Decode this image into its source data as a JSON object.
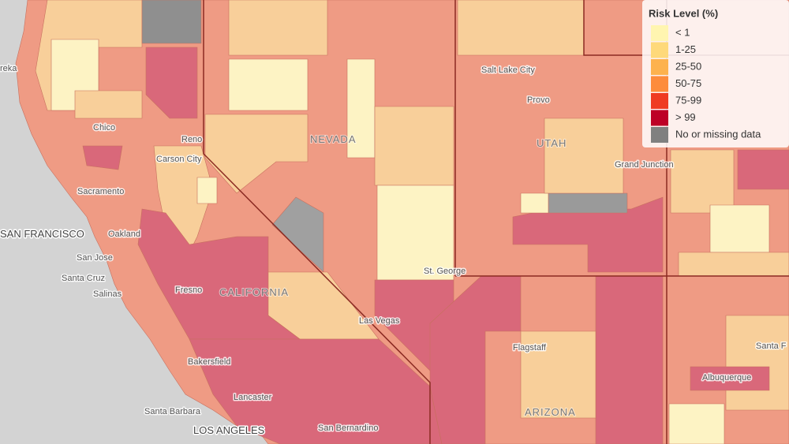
{
  "legend": {
    "title": "Risk Level (%)",
    "items": [
      {
        "label": "< 1",
        "color": "#fff5b0"
      },
      {
        "label": "1-25",
        "color": "#fed97a"
      },
      {
        "label": "25-50",
        "color": "#fdb24e"
      },
      {
        "label": "50-75",
        "color": "#fd8c3c"
      },
      {
        "label": "75-99",
        "color": "#ef3b22"
      },
      {
        "label": "> 99",
        "color": "#bd0026"
      },
      {
        "label": "No or missing data",
        "color": "#808080"
      }
    ]
  },
  "places": [
    "reka",
    "Chico",
    "Reno",
    "Carson City",
    "Sacramento",
    "SAN FRANCISCO",
    "Oakland",
    "San Jose",
    "Santa Cruz",
    "Salinas",
    "Fresno",
    "CALIFORNIA",
    "NEVADA",
    "Bakersfield",
    "Lancaster",
    "Santa Barbara",
    "LOS ANGELES",
    "San Bernardino",
    "Las Vegas",
    "St. George",
    "Salt Lake City",
    "Provo",
    "UTAH",
    "Grand Junction",
    "Flagstaff",
    "ARIZONA",
    "Albuquerque",
    "Santa F"
  ]
}
